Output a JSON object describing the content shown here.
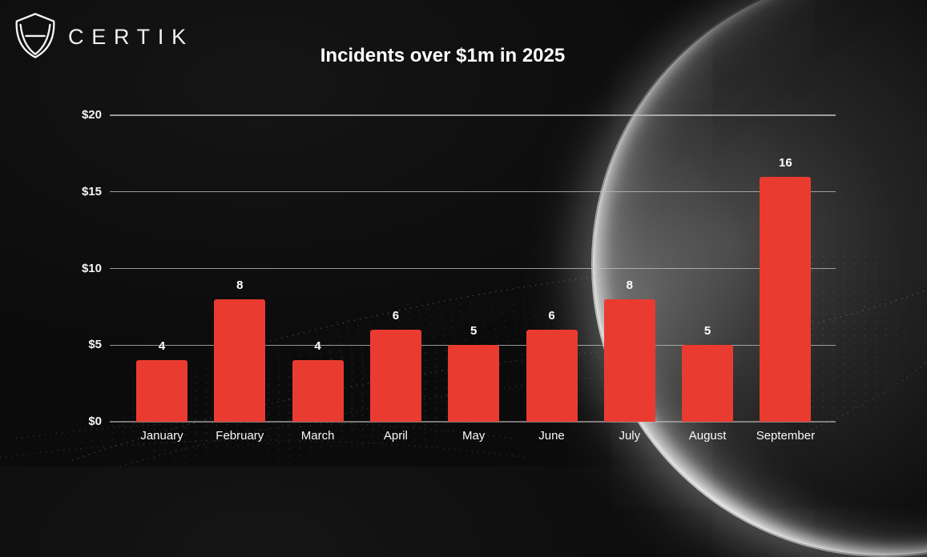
{
  "brand": {
    "name": "CERTIK",
    "logo_icon": "certik-shield-icon"
  },
  "chart_data": {
    "type": "bar",
    "title": "Incidents over $1m in 2025",
    "categories": [
      "January",
      "February",
      "March",
      "April",
      "May",
      "June",
      "July",
      "August",
      "September"
    ],
    "values": [
      4,
      8,
      4,
      6,
      5,
      6,
      8,
      5,
      16
    ],
    "xlabel": "",
    "ylabel": "",
    "y_ticks": [
      {
        "label": "$0",
        "value": 0
      },
      {
        "label": "$5",
        "value": 5
      },
      {
        "label": "$10",
        "value": 10
      },
      {
        "label": "$15",
        "value": 15
      },
      {
        "label": "$20",
        "value": 20
      }
    ],
    "ylim": [
      0,
      20
    ],
    "grid": true,
    "legend": false,
    "data_labels": true,
    "bar_color": "#ea3b31",
    "grid_color": "#c0c0c0",
    "text_color": "#ffffff",
    "background_color": "#0b0b0b"
  }
}
